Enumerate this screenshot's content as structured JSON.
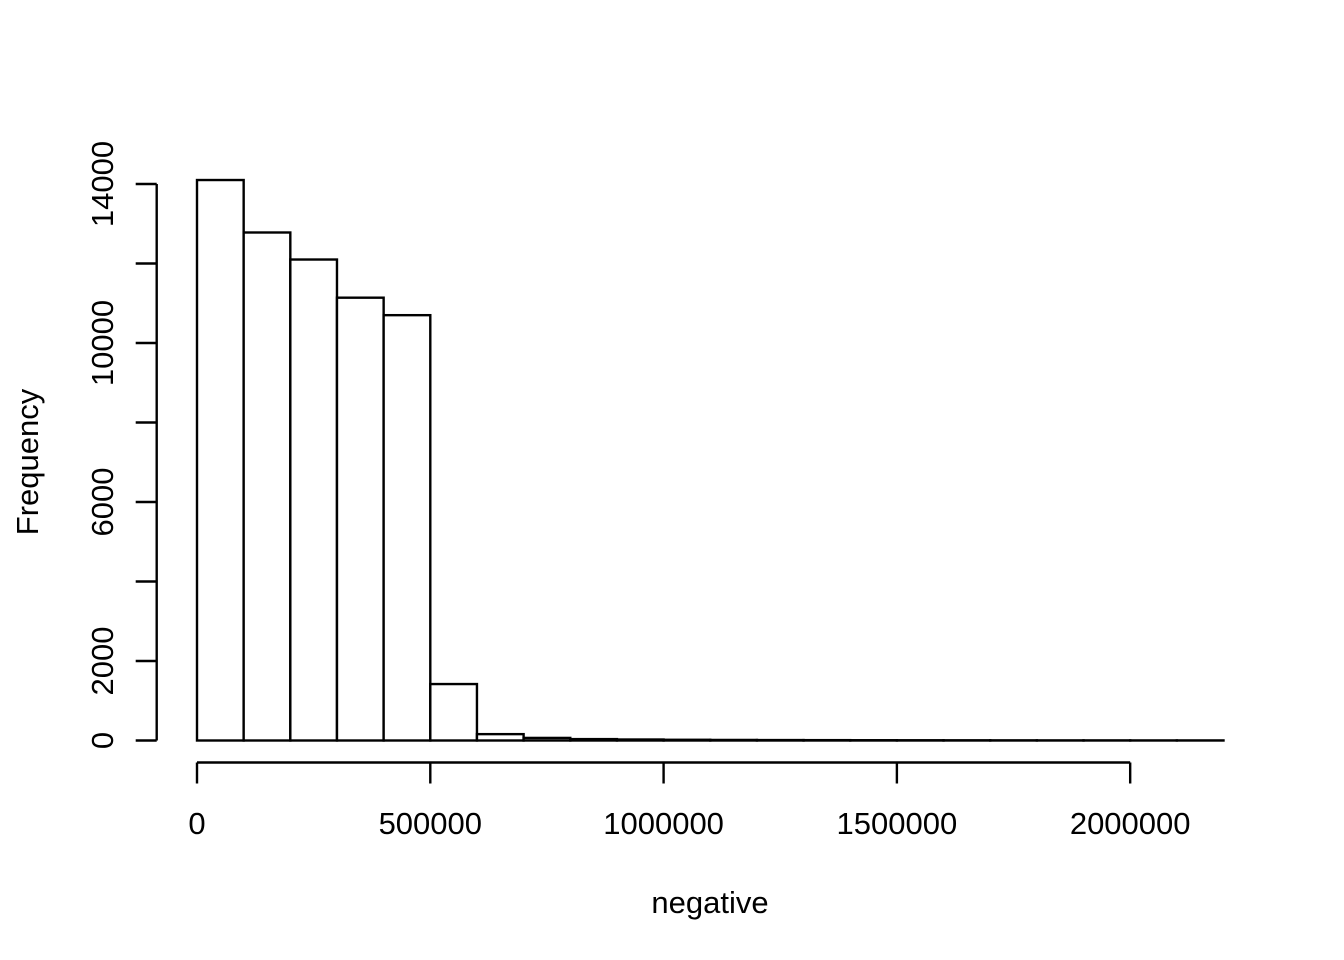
{
  "page": {
    "background_color": "#ffffff"
  },
  "chart_data": {
    "type": "bar",
    "subtype": "histogram",
    "title": "",
    "xlabel": "negative",
    "ylabel": "Frequency",
    "bar_fill": "#ffffff",
    "bar_stroke": "#000000",
    "axis_color": "#000000",
    "text_color": "#000000",
    "line_width": 2.4,
    "grid": false,
    "legend": false,
    "xlim": [
      0,
      2200000
    ],
    "ylim": [
      0,
      14000
    ],
    "bin_start": 0,
    "bin_width": 100000,
    "counts": [
      14100,
      12780,
      12100,
      11140,
      10700,
      1420,
      160,
      65,
      35,
      25,
      18,
      14,
      11,
      9,
      7,
      6,
      5,
      4,
      3,
      3,
      2,
      2
    ],
    "x_ticks": [
      {
        "value": 0,
        "label": "0"
      },
      {
        "value": 500000,
        "label": "500000"
      },
      {
        "value": 1000000,
        "label": "1000000"
      },
      {
        "value": 1500000,
        "label": "1500000"
      },
      {
        "value": 2000000,
        "label": "2000000"
      }
    ],
    "y_ticks": [
      {
        "value": 0,
        "label": "0"
      },
      {
        "value": 2000,
        "label": "2000"
      },
      {
        "value": 4000,
        "label": ""
      },
      {
        "value": 6000,
        "label": "6000"
      },
      {
        "value": 8000,
        "label": ""
      },
      {
        "value": 10000,
        "label": "10000"
      },
      {
        "value": 12000,
        "label": ""
      },
      {
        "value": 14000,
        "label": "14000"
      }
    ]
  }
}
